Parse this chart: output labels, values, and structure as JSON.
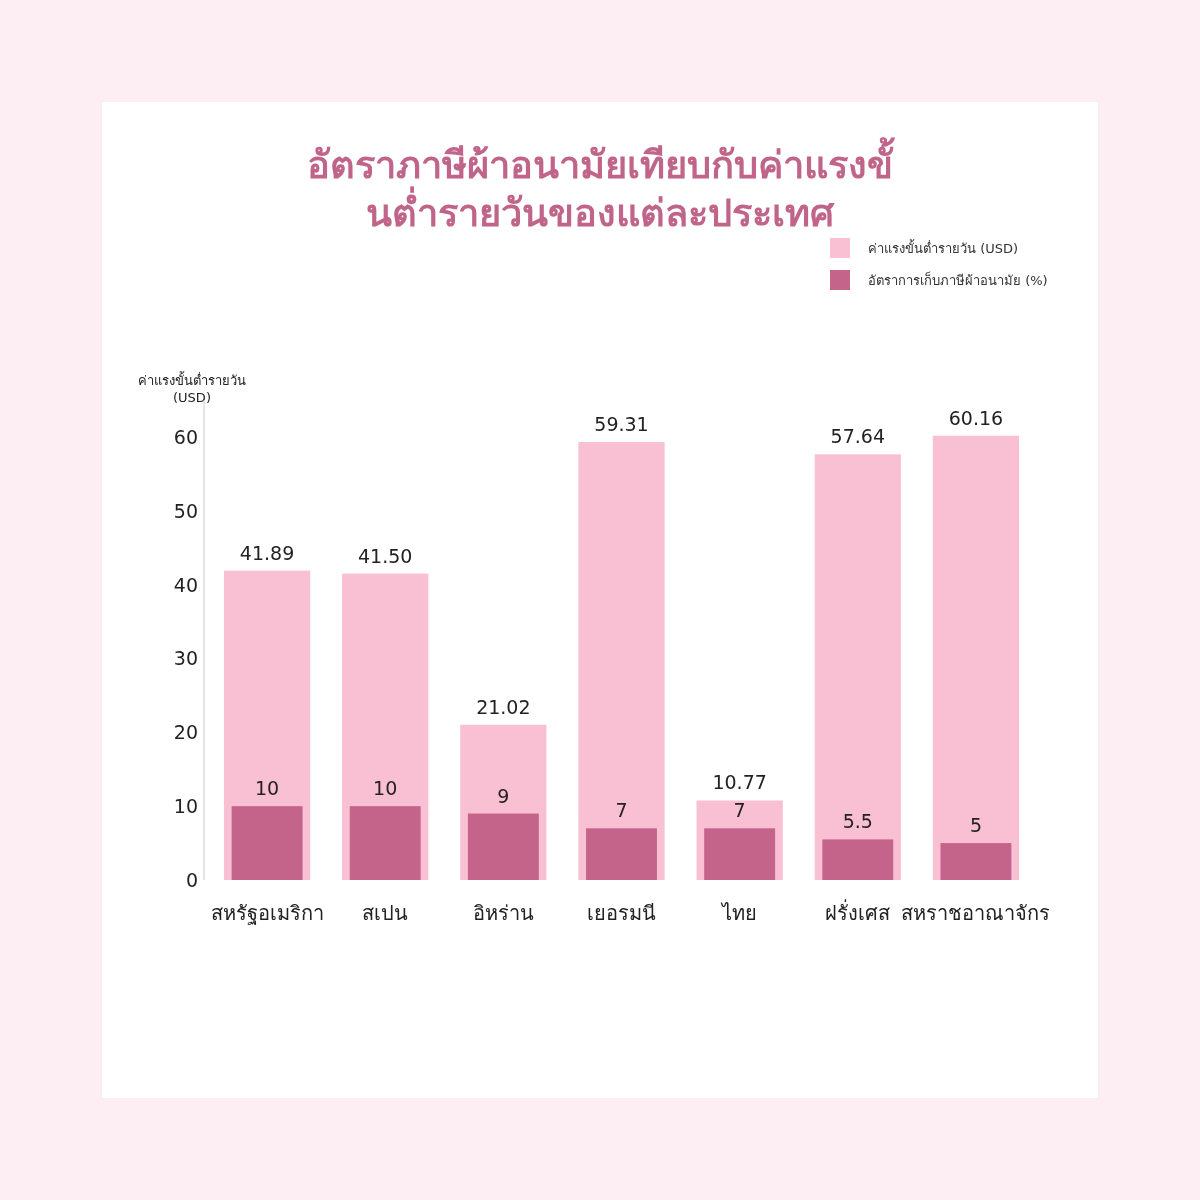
{
  "chart_data": {
    "type": "bar",
    "title": "อัตราภาษีผ้าอนามัยเทียบกับค่าแรงขั้นต่ำรายวันของแต่ละประเทศ",
    "ylabel": "ค่าแรงขั้นต่ำรายวัน (USD)",
    "categories": [
      "สหรัฐอเมริกา",
      "สเปน",
      "อิหร่าน",
      "เยอรมนี",
      "ไทย",
      "ฝรั่งเศส",
      "สหราชอาณาจักร"
    ],
    "series": [
      {
        "name": "ค่าแรงขั้นต่ำรายวัน (USD)",
        "color": "#f9bfd3",
        "values": [
          41.89,
          41.5,
          21.02,
          59.31,
          10.77,
          57.64,
          60.16
        ],
        "value_labels": [
          "41.89",
          "41.50",
          "21.02",
          "59.31",
          "10.77",
          "57.64",
          "60.16"
        ]
      },
      {
        "name": "อัตราการเก็บภาษีผ้าอนามัย (%)",
        "color": "#c4648a",
        "values": [
          10,
          10,
          9,
          7,
          7,
          5.5,
          5
        ]
      }
    ],
    "ylim": [
      0,
      65
    ],
    "yticks": [
      0,
      10,
      20,
      30,
      40,
      50,
      60
    ],
    "data_labels": true,
    "legend": "top right",
    "grid": false
  }
}
